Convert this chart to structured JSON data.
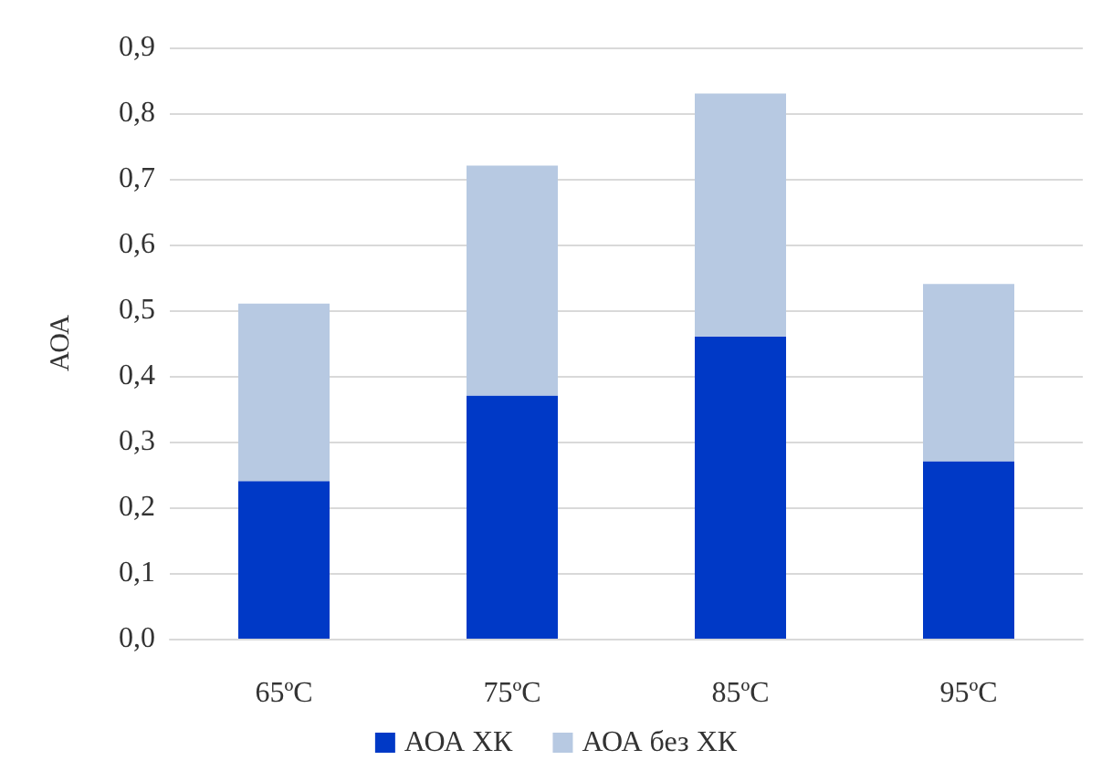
{
  "chart_data": {
    "type": "bar",
    "stacked": true,
    "ylabel": "АОА",
    "categories": [
      "65ºC",
      "75ºC",
      "85ºC",
      "95ºC"
    ],
    "series": [
      {
        "name": "АОА ХК",
        "color": "#0039c6",
        "values": [
          0.24,
          0.37,
          0.46,
          0.27
        ]
      },
      {
        "name": "АОА без ХК",
        "color": "#b7c9e2",
        "values": [
          0.27,
          0.35,
          0.37,
          0.27
        ]
      }
    ],
    "ylim": [
      0,
      0.9
    ],
    "yticks": [
      {
        "value": 0,
        "label": "0,0"
      },
      {
        "value": 0.1,
        "label": "0,1"
      },
      {
        "value": 0.2,
        "label": "0,2"
      },
      {
        "value": 0.3,
        "label": "0,3"
      },
      {
        "value": 0.4,
        "label": "0,4"
      },
      {
        "value": 0.5,
        "label": "0,5"
      },
      {
        "value": 0.6,
        "label": "0,6"
      },
      {
        "value": 0.7,
        "label": "0,7"
      },
      {
        "value": 0.8,
        "label": "0,8"
      },
      {
        "value": 0.9,
        "label": "0,9"
      }
    ],
    "grid": "y",
    "legend": "bottom"
  }
}
